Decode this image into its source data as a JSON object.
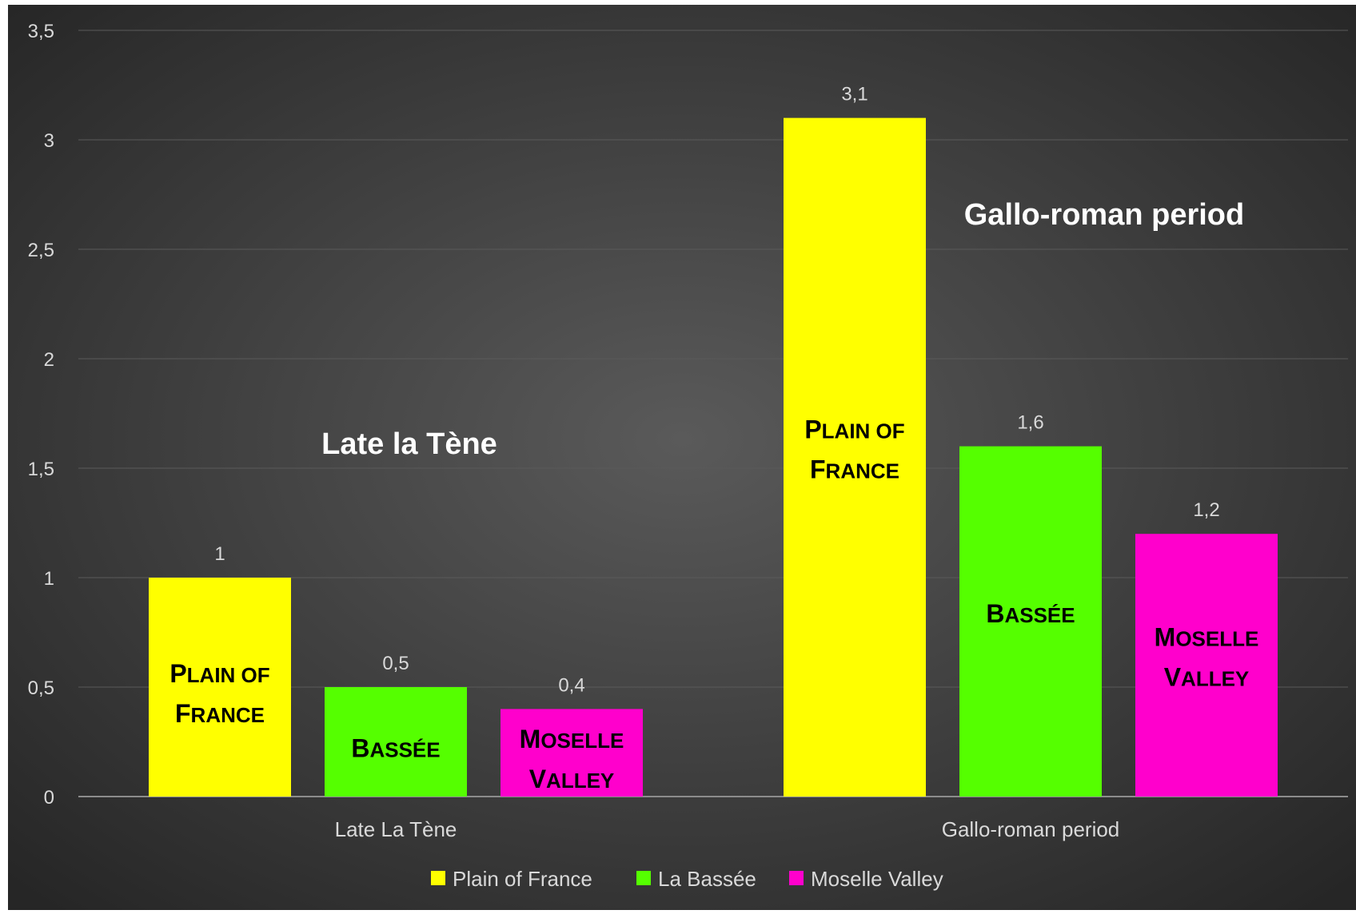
{
  "chart_data": {
    "type": "bar",
    "categories": [
      "Late La Tène",
      "Gallo-roman period"
    ],
    "series": [
      {
        "name": "Plain of France",
        "values": [
          1,
          3.1
        ],
        "color": "#ffff00",
        "bar_label": [
          "Plain of",
          "France"
        ]
      },
      {
        "name": "La Bassée",
        "values": [
          0.5,
          1.6
        ],
        "color": "#55ff00",
        "bar_label": [
          "Bassée"
        ]
      },
      {
        "name": "Moselle Valley",
        "values": [
          0.4,
          1.2
        ],
        "color": "#ff00cc",
        "bar_label": [
          "Moselle",
          "Valley"
        ]
      }
    ],
    "data_labels": [
      [
        "1",
        "0,5",
        "0,4"
      ],
      [
        "3,1",
        "1,6",
        "1,2"
      ]
    ],
    "yticks": [
      "0",
      "0,5",
      "1",
      "1,5",
      "2",
      "2,5",
      "3",
      "3,5"
    ],
    "ylim": [
      0,
      3.5
    ],
    "group_titles": [
      "Late la Tène",
      "Gallo-roman period"
    ],
    "legend_position": "bottom",
    "grid": true,
    "background": "#404040",
    "gridline_color": "#5a5a5a"
  }
}
